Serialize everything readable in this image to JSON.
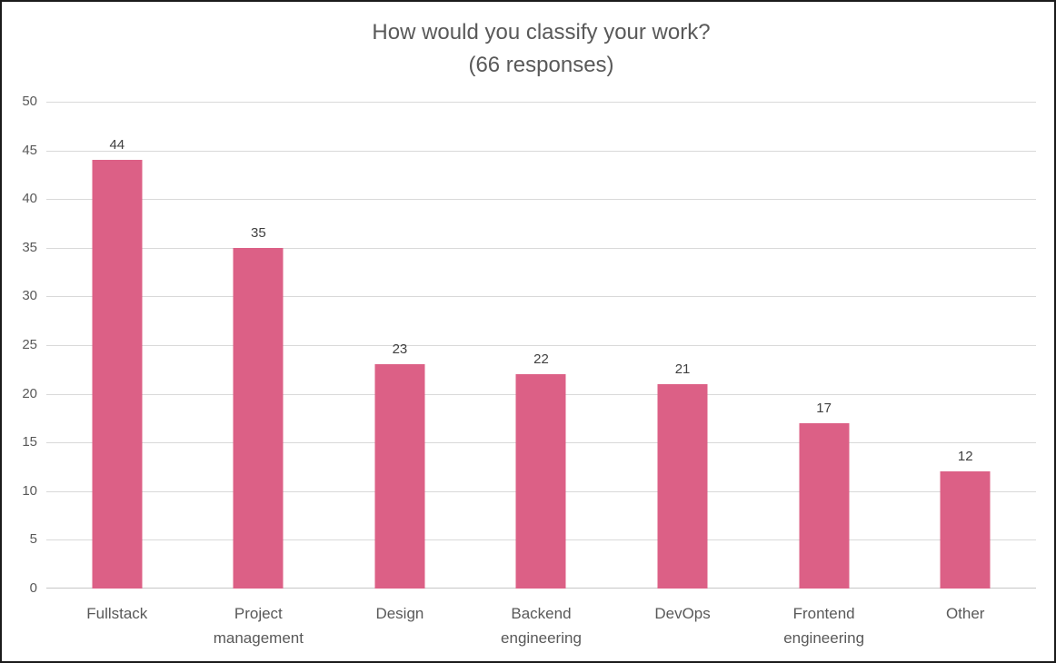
{
  "chart_data": {
    "type": "bar",
    "title": "How would you classify your work?",
    "subtitle": "(66 responses)",
    "categories": [
      "Fullstack",
      "Project management",
      "Design",
      "Backend engineering",
      "DevOps",
      "Frontend engineering",
      "Other"
    ],
    "values": [
      44,
      35,
      23,
      22,
      21,
      17,
      12
    ],
    "xlabel": "",
    "ylabel": "",
    "ylim": [
      0,
      50
    ],
    "ytick_step": 5,
    "ytick_labels": [
      "0",
      "5",
      "10",
      "15",
      "20",
      "25",
      "30",
      "35",
      "40",
      "45",
      "50"
    ],
    "grid": true,
    "legend": "none",
    "data_labels_shown": true,
    "colors": {
      "bar": "#dc6086",
      "axis_text": "#595959",
      "data_label_text": "#3f3f3f",
      "title_text": "#595959",
      "gridline": "#d9d9d9",
      "frame_border": "#1b1b1b",
      "background": "#ffffff"
    }
  }
}
